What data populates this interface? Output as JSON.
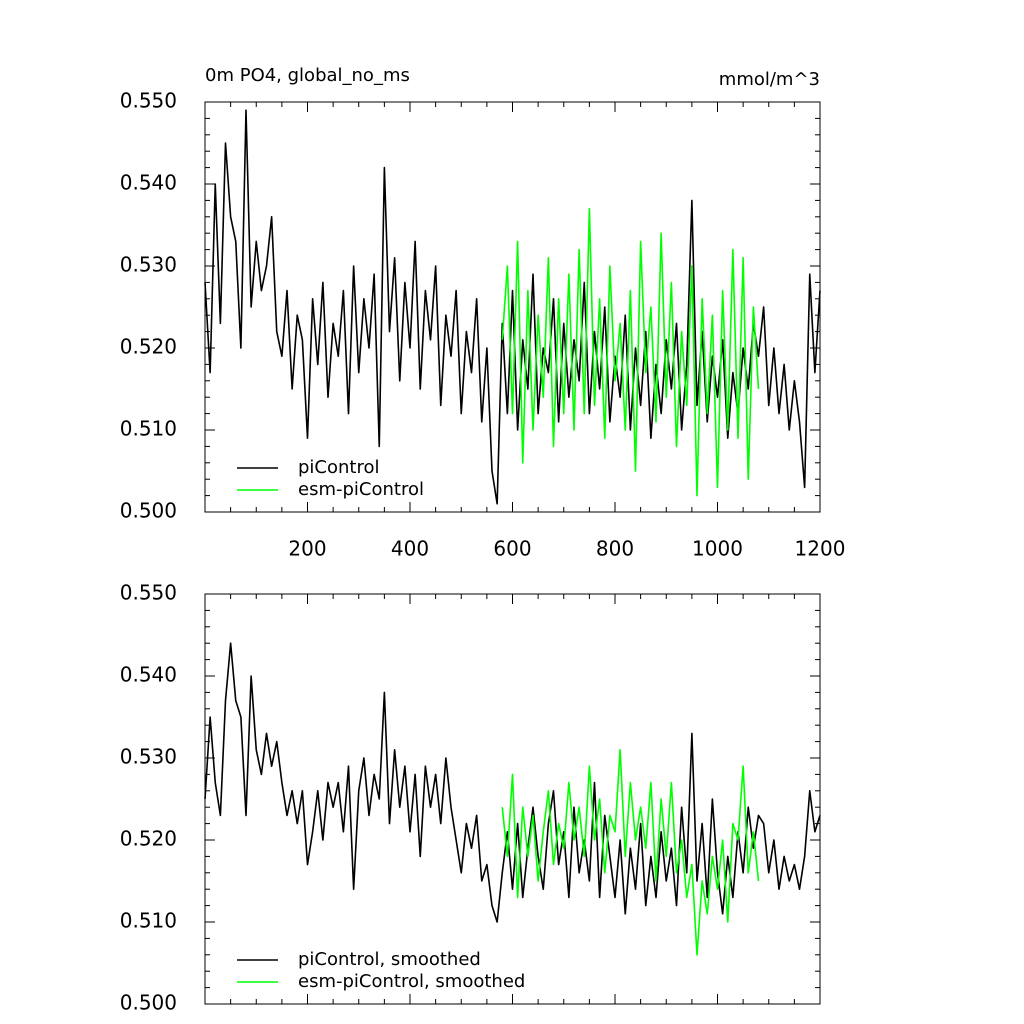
{
  "chart_data": [
    {
      "type": "line",
      "title": "0m PO4, global_no_ms",
      "units": "mmol/m^3",
      "xlim": [
        0,
        1200
      ],
      "xticks": [
        200,
        400,
        600,
        800,
        1000,
        1200
      ],
      "show_xtick_labels": true,
      "xminor": 4,
      "ylim": [
        0.5,
        0.55
      ],
      "yminor": 5,
      "yticks": [
        {
          "value": 0.5,
          "label": "0.500"
        },
        {
          "value": 0.51,
          "label": "0.510"
        },
        {
          "value": 0.52,
          "label": "0.520"
        },
        {
          "value": 0.53,
          "label": "0.530"
        },
        {
          "value": 0.54,
          "label": "0.540"
        },
        {
          "value": 0.55,
          "label": "0.550"
        }
      ],
      "legend": "lower left",
      "series": [
        {
          "name": "piControl",
          "color": "#000000",
          "x": [
            0,
            10,
            20,
            30,
            40,
            50,
            60,
            70,
            80,
            90,
            100,
            110,
            120,
            130,
            140,
            150,
            160,
            170,
            180,
            190,
            200,
            210,
            220,
            230,
            240,
            250,
            260,
            270,
            280,
            290,
            300,
            310,
            320,
            330,
            340,
            350,
            360,
            370,
            380,
            390,
            400,
            410,
            420,
            430,
            440,
            450,
            460,
            470,
            480,
            490,
            500,
            510,
            520,
            530,
            540,
            550,
            560,
            570,
            580,
            590,
            600,
            610,
            620,
            630,
            640,
            650,
            660,
            670,
            680,
            690,
            700,
            710,
            720,
            730,
            740,
            750,
            760,
            770,
            780,
            790,
            800,
            810,
            820,
            830,
            840,
            850,
            860,
            870,
            880,
            890,
            900,
            910,
            920,
            930,
            940,
            950,
            960,
            970,
            980,
            990,
            1000,
            1010,
            1020,
            1030,
            1040,
            1050,
            1060,
            1070,
            1080,
            1090,
            1100,
            1110,
            1120,
            1130,
            1140,
            1150,
            1160,
            1170,
            1180,
            1190,
            1200
          ],
          "values": [
            0.528,
            0.517,
            0.54,
            0.523,
            0.545,
            0.536,
            0.533,
            0.52,
            0.549,
            0.525,
            0.533,
            0.527,
            0.53,
            0.536,
            0.522,
            0.519,
            0.527,
            0.515,
            0.524,
            0.521,
            0.509,
            0.526,
            0.518,
            0.528,
            0.514,
            0.523,
            0.519,
            0.527,
            0.512,
            0.53,
            0.517,
            0.526,
            0.52,
            0.529,
            0.508,
            0.542,
            0.522,
            0.531,
            0.516,
            0.528,
            0.52,
            0.533,
            0.515,
            0.527,
            0.521,
            0.53,
            0.513,
            0.524,
            0.519,
            0.527,
            0.512,
            0.522,
            0.517,
            0.526,
            0.511,
            0.52,
            0.505,
            0.501,
            0.523,
            0.512,
            0.527,
            0.51,
            0.521,
            0.515,
            0.529,
            0.512,
            0.52,
            0.517,
            0.526,
            0.511,
            0.523,
            0.514,
            0.521,
            0.516,
            0.528,
            0.512,
            0.522,
            0.515,
            0.525,
            0.511,
            0.519,
            0.514,
            0.524,
            0.51,
            0.52,
            0.513,
            0.522,
            0.509,
            0.518,
            0.512,
            0.521,
            0.515,
            0.523,
            0.51,
            0.518,
            0.538,
            0.513,
            0.522,
            0.511,
            0.519,
            0.514,
            0.521,
            0.509,
            0.517,
            0.512,
            0.52,
            0.515,
            0.523,
            0.519,
            0.525,
            0.513,
            0.52,
            0.512,
            0.518,
            0.51,
            0.516,
            0.511,
            0.503,
            0.529,
            0.517,
            0.527
          ]
        },
        {
          "name": "esm-piControl",
          "color": "#00ff00",
          "x": [
            580,
            590,
            600,
            610,
            620,
            630,
            640,
            650,
            660,
            670,
            680,
            690,
            700,
            710,
            720,
            730,
            740,
            750,
            760,
            770,
            780,
            790,
            800,
            810,
            820,
            830,
            840,
            850,
            860,
            870,
            880,
            890,
            900,
            910,
            920,
            930,
            940,
            950,
            960,
            970,
            980,
            990,
            1000,
            1010,
            1020,
            1030,
            1040,
            1050,
            1060,
            1070,
            1080
          ],
          "values": [
            0.521,
            0.53,
            0.512,
            0.533,
            0.506,
            0.527,
            0.51,
            0.524,
            0.514,
            0.531,
            0.508,
            0.526,
            0.512,
            0.529,
            0.51,
            0.532,
            0.512,
            0.537,
            0.513,
            0.526,
            0.509,
            0.53,
            0.516,
            0.523,
            0.51,
            0.527,
            0.505,
            0.533,
            0.517,
            0.525,
            0.511,
            0.534,
            0.514,
            0.528,
            0.508,
            0.522,
            0.513,
            0.53,
            0.502,
            0.526,
            0.512,
            0.524,
            0.503,
            0.527,
            0.51,
            0.532,
            0.509,
            0.531,
            0.504,
            0.525,
            0.515
          ]
        }
      ]
    },
    {
      "type": "line",
      "xlim": [
        0,
        1200
      ],
      "xticks": [
        200,
        400,
        600,
        800,
        1000,
        1200
      ],
      "show_xtick_labels": false,
      "xminor": 4,
      "ylim": [
        0.5,
        0.55
      ],
      "yminor": 5,
      "yticks": [
        {
          "value": 0.5,
          "label": "0.500"
        },
        {
          "value": 0.51,
          "label": "0.510"
        },
        {
          "value": 0.52,
          "label": "0.520"
        },
        {
          "value": 0.53,
          "label": "0.530"
        },
        {
          "value": 0.54,
          "label": "0.540"
        },
        {
          "value": 0.55,
          "label": "0.550"
        }
      ],
      "legend": "lower left",
      "series": [
        {
          "name": "piControl, smoothed",
          "color": "#000000",
          "x": [
            0,
            10,
            20,
            30,
            40,
            50,
            60,
            70,
            80,
            90,
            100,
            110,
            120,
            130,
            140,
            150,
            160,
            170,
            180,
            190,
            200,
            210,
            220,
            230,
            240,
            250,
            260,
            270,
            280,
            290,
            300,
            310,
            320,
            330,
            340,
            350,
            360,
            370,
            380,
            390,
            400,
            410,
            420,
            430,
            440,
            450,
            460,
            470,
            480,
            490,
            500,
            510,
            520,
            530,
            540,
            550,
            560,
            570,
            580,
            590,
            600,
            610,
            620,
            630,
            640,
            650,
            660,
            670,
            680,
            690,
            700,
            710,
            720,
            730,
            740,
            750,
            760,
            770,
            780,
            790,
            800,
            810,
            820,
            830,
            840,
            850,
            860,
            870,
            880,
            890,
            900,
            910,
            920,
            930,
            940,
            950,
            960,
            970,
            980,
            990,
            1000,
            1010,
            1020,
            1030,
            1040,
            1050,
            1060,
            1070,
            1080,
            1090,
            1100,
            1110,
            1120,
            1130,
            1140,
            1150,
            1160,
            1170,
            1180,
            1190,
            1200
          ],
          "values": [
            0.525,
            0.535,
            0.527,
            0.523,
            0.537,
            0.544,
            0.537,
            0.535,
            0.523,
            0.54,
            0.531,
            0.528,
            0.533,
            0.529,
            0.532,
            0.527,
            0.523,
            0.526,
            0.522,
            0.526,
            0.517,
            0.521,
            0.526,
            0.52,
            0.527,
            0.524,
            0.527,
            0.521,
            0.529,
            0.514,
            0.526,
            0.53,
            0.523,
            0.528,
            0.525,
            0.538,
            0.522,
            0.531,
            0.524,
            0.529,
            0.521,
            0.528,
            0.518,
            0.529,
            0.524,
            0.528,
            0.522,
            0.53,
            0.524,
            0.52,
            0.516,
            0.522,
            0.519,
            0.523,
            0.515,
            0.517,
            0.512,
            0.51,
            0.516,
            0.521,
            0.514,
            0.522,
            0.513,
            0.519,
            0.524,
            0.518,
            0.514,
            0.522,
            0.526,
            0.517,
            0.521,
            0.513,
            0.524,
            0.516,
            0.52,
            0.515,
            0.527,
            0.513,
            0.523,
            0.518,
            0.513,
            0.52,
            0.511,
            0.519,
            0.514,
            0.522,
            0.512,
            0.518,
            0.513,
            0.521,
            0.515,
            0.519,
            0.512,
            0.524,
            0.516,
            0.533,
            0.515,
            0.522,
            0.513,
            0.525,
            0.516,
            0.511,
            0.518,
            0.513,
            0.521,
            0.516,
            0.524,
            0.519,
            0.523,
            0.522,
            0.516,
            0.52,
            0.514,
            0.518,
            0.515,
            0.517,
            0.514,
            0.518,
            0.526,
            0.521,
            0.523
          ]
        },
        {
          "name": "esm-piControl, smoothed",
          "color": "#00ff00",
          "x": [
            580,
            590,
            600,
            610,
            620,
            630,
            640,
            650,
            660,
            670,
            680,
            690,
            700,
            710,
            720,
            730,
            740,
            750,
            760,
            770,
            780,
            790,
            800,
            810,
            820,
            830,
            840,
            850,
            860,
            870,
            880,
            890,
            900,
            910,
            920,
            930,
            940,
            950,
            960,
            970,
            980,
            990,
            1000,
            1010,
            1020,
            1030,
            1040,
            1050,
            1060,
            1070,
            1080
          ],
          "values": [
            0.524,
            0.518,
            0.528,
            0.513,
            0.524,
            0.518,
            0.523,
            0.515,
            0.521,
            0.526,
            0.517,
            0.522,
            0.519,
            0.527,
            0.52,
            0.524,
            0.518,
            0.529,
            0.52,
            0.525,
            0.516,
            0.523,
            0.521,
            0.531,
            0.518,
            0.527,
            0.52,
            0.524,
            0.519,
            0.527,
            0.515,
            0.525,
            0.518,
            0.527,
            0.516,
            0.52,
            0.513,
            0.517,
            0.506,
            0.515,
            0.511,
            0.518,
            0.514,
            0.52,
            0.51,
            0.522,
            0.52,
            0.529,
            0.516,
            0.521,
            0.515
          ]
        }
      ]
    }
  ]
}
